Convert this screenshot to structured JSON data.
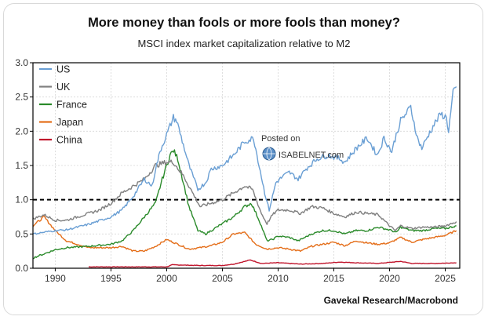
{
  "title": "More money than fools or more fools than money?",
  "subtitle": "MSCI index market capitalization relative to M2",
  "source": "Gavekal Research/Macrobond",
  "watermark": {
    "line1": "Posted on",
    "line2": "ISABELNET.com"
  },
  "chart_data": {
    "type": "line",
    "title": "More money than fools or more fools than money?",
    "subtitle": "MSCI index market capitalization relative to M2",
    "xlabel": "",
    "ylabel": "",
    "xlim": [
      1988,
      2026.3
    ],
    "ylim": [
      0,
      3.0
    ],
    "x_ticks": [
      "1990",
      "1995",
      "2000",
      "2005",
      "2010",
      "2015",
      "2020",
      "2025"
    ],
    "y_ticks": [
      "0.0",
      "0.5",
      "1.0",
      "1.5",
      "2.0",
      "2.5",
      "3.0"
    ],
    "reference_line": {
      "y": 1.0,
      "style": "dashed",
      "color": "#000000"
    },
    "grid": true,
    "legend_position": "top-left",
    "series": [
      {
        "name": "US",
        "color": "#6a9fd4",
        "x": [
          1988,
          1990,
          1991,
          1993,
          1995,
          1996,
          1997,
          1998,
          1998.7,
          1999,
          1999.5,
          2000,
          2000.6,
          2000.9,
          2001.5,
          2002,
          2002.8,
          2003.5,
          2004,
          2005,
          2006,
          2007,
          2007.8,
          2008.3,
          2008.8,
          2009.2,
          2009.8,
          2010.5,
          2011,
          2011.8,
          2012.5,
          2013.5,
          2014.5,
          2015.5,
          2016,
          2017,
          2018,
          2018.9,
          2019.5,
          2020.2,
          2020.6,
          2021,
          2021.9,
          2022.5,
          2022.9,
          2023.5,
          2024,
          2024.6,
          2025.1,
          2025.3,
          2025.7,
          2026
        ],
        "y": [
          0.5,
          0.55,
          0.56,
          0.64,
          0.75,
          0.85,
          1.05,
          1.3,
          1.2,
          1.45,
          1.75,
          1.95,
          2.2,
          2.15,
          1.8,
          1.5,
          1.15,
          1.25,
          1.45,
          1.5,
          1.65,
          1.85,
          1.9,
          1.5,
          1.1,
          0.85,
          1.25,
          1.35,
          1.4,
          1.3,
          1.45,
          1.6,
          1.65,
          1.6,
          1.55,
          1.75,
          1.9,
          1.65,
          1.9,
          1.7,
          1.95,
          2.15,
          2.35,
          1.9,
          1.75,
          1.95,
          2.1,
          2.25,
          2.2,
          2.0,
          2.55,
          2.65
        ]
      },
      {
        "name": "UK",
        "color": "#7f7f7f",
        "x": [
          1988,
          1989,
          1990,
          1991,
          1993,
          1994,
          1995,
          1996,
          1997,
          1998,
          1999,
          2000,
          2000.6,
          2001.5,
          2002.5,
          2003,
          2004,
          2005,
          2006,
          2007,
          2007.7,
          2008.5,
          2009,
          2009.5,
          2010,
          2011,
          2012,
          2013,
          2014,
          2015,
          2016,
          2017,
          2018,
          2019,
          2020,
          2020.5,
          2021,
          2022,
          2023,
          2024,
          2025,
          2026
        ],
        "y": [
          0.72,
          0.78,
          0.7,
          0.7,
          0.8,
          0.85,
          0.95,
          1.1,
          1.2,
          1.3,
          1.5,
          1.55,
          1.55,
          1.35,
          1.05,
          0.9,
          0.95,
          1.0,
          1.1,
          1.2,
          1.15,
          0.8,
          0.65,
          0.78,
          0.85,
          0.85,
          0.8,
          0.9,
          0.88,
          0.8,
          0.75,
          0.82,
          0.8,
          0.78,
          0.62,
          0.55,
          0.62,
          0.58,
          0.6,
          0.6,
          0.62,
          0.68
        ]
      },
      {
        "name": "France",
        "color": "#2a8a2a",
        "x": [
          1988,
          1990,
          1991,
          1993,
          1995,
          1996,
          1997,
          1998,
          1999,
          1999.6,
          2000.3,
          2000.6,
          2001,
          2001.5,
          2002,
          2002.8,
          2003.5,
          2004,
          2005,
          2006,
          2007,
          2007.6,
          2008.3,
          2009,
          2009.5,
          2010,
          2011,
          2011.8,
          2013,
          2014,
          2015,
          2016,
          2017,
          2018,
          2019,
          2020.2,
          2020.6,
          2021,
          2022,
          2023,
          2024,
          2025,
          2026
        ],
        "y": [
          0.15,
          0.27,
          0.3,
          0.32,
          0.35,
          0.4,
          0.55,
          0.75,
          0.95,
          1.3,
          1.65,
          1.72,
          1.6,
          1.25,
          0.9,
          0.55,
          0.5,
          0.55,
          0.65,
          0.75,
          0.9,
          0.95,
          0.7,
          0.4,
          0.42,
          0.47,
          0.45,
          0.4,
          0.5,
          0.55,
          0.55,
          0.5,
          0.55,
          0.55,
          0.6,
          0.55,
          0.52,
          0.6,
          0.55,
          0.55,
          0.58,
          0.58,
          0.62
        ]
      },
      {
        "name": "Japan",
        "color": "#e46d18",
        "x": [
          1988,
          1989,
          1990,
          1991,
          1992,
          1993,
          1995,
          1996,
          1997,
          1998,
          1999,
          2000,
          2001,
          2002,
          2003,
          2004,
          2005,
          2006,
          2007,
          2008,
          2009,
          2010,
          2011,
          2012,
          2013,
          2014,
          2015,
          2016,
          2017,
          2018,
          2019,
          2020,
          2021,
          2022,
          2023,
          2024,
          2025,
          2026
        ],
        "y": [
          0.62,
          0.75,
          0.55,
          0.4,
          0.35,
          0.3,
          0.3,
          0.32,
          0.25,
          0.25,
          0.32,
          0.42,
          0.35,
          0.28,
          0.3,
          0.33,
          0.38,
          0.5,
          0.52,
          0.35,
          0.28,
          0.3,
          0.28,
          0.25,
          0.32,
          0.35,
          0.38,
          0.33,
          0.4,
          0.37,
          0.35,
          0.37,
          0.45,
          0.38,
          0.42,
          0.45,
          0.48,
          0.55
        ]
      },
      {
        "name": "China",
        "color": "#c0142b",
        "x": [
          1993,
          1995,
          1998,
          2000,
          2000.5,
          2003,
          2005,
          2006,
          2007.5,
          2008.5,
          2010,
          2012,
          2014,
          2015.5,
          2017,
          2019,
          2021,
          2022,
          2024,
          2026
        ],
        "y": [
          0.02,
          0.02,
          0.02,
          0.02,
          0.05,
          0.04,
          0.04,
          0.06,
          0.12,
          0.07,
          0.08,
          0.06,
          0.07,
          0.09,
          0.08,
          0.07,
          0.1,
          0.07,
          0.07,
          0.08
        ]
      }
    ]
  }
}
